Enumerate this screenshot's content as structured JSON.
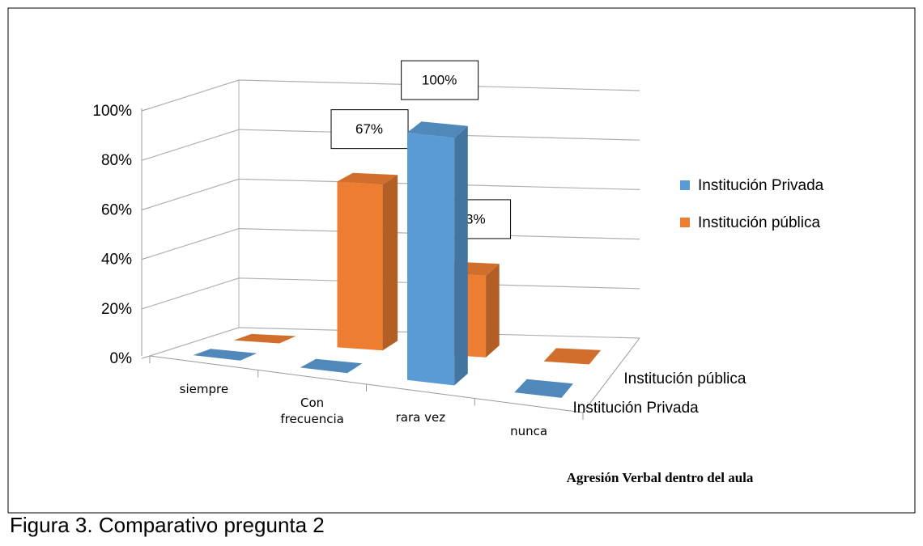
{
  "chart_data": {
    "type": "bar3d",
    "caption": "Agresión Verbal dentro del aula",
    "figure_caption": "Figura 3. Comparativo pregunta 2",
    "categories": [
      "siempre",
      "Con frecuencia",
      "rara vez",
      "nunca"
    ],
    "series": [
      {
        "name": "Institución Privada",
        "color": "#5b9bd5",
        "values": [
          0,
          0,
          100,
          0
        ],
        "value_labels": [
          null,
          null,
          "100%",
          null
        ]
      },
      {
        "name": "Institución pública",
        "color": "#ed7d31",
        "values": [
          0,
          67,
          33,
          0
        ],
        "value_labels": [
          null,
          "67%",
          "33%",
          null
        ]
      }
    ],
    "ylim": [
      0,
      100
    ],
    "yticks": [
      {
        "value": 0,
        "label": "0%"
      },
      {
        "value": 20,
        "label": "20%"
      },
      {
        "value": 40,
        "label": "40%"
      },
      {
        "value": 60,
        "label": "60%"
      },
      {
        "value": 80,
        "label": "80%"
      },
      {
        "value": 100,
        "label": "100%"
      }
    ],
    "grid": true,
    "legend": "right"
  }
}
